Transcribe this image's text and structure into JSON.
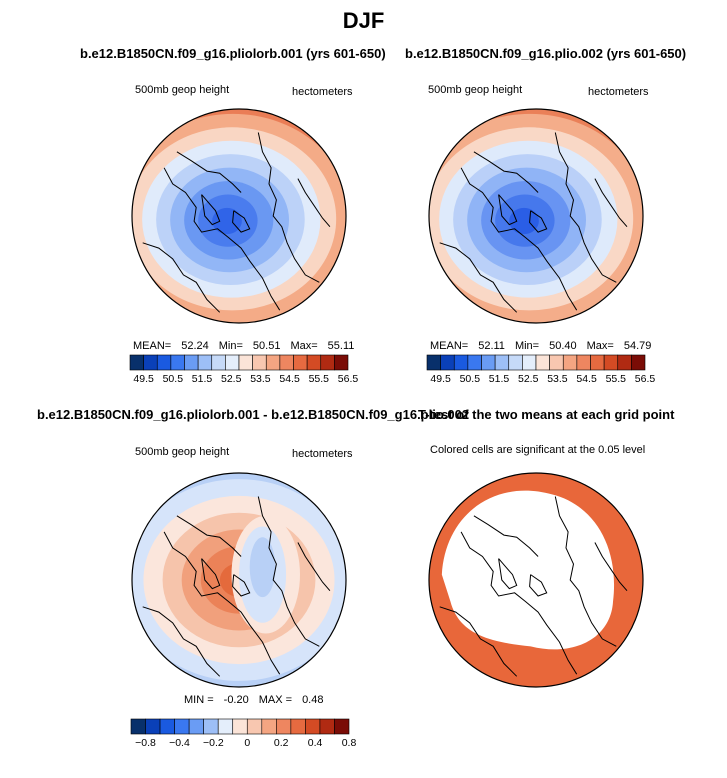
{
  "main_title": "DJF",
  "chart_data": [
    {
      "type": "map",
      "id": "map1",
      "title": "b.e12.B1850CN.f09_g16.pliolorb.001 (yrs 601-650)",
      "left_label": "500mb geop height",
      "right_label": "hectometers",
      "stats": {
        "mean_label": "MEAN=",
        "mean": "52.24",
        "min_label": "Min=",
        "min": "50.51",
        "max_label": "Max=",
        "max": "55.11"
      },
      "colorbar": {
        "ticks": [
          "49.5",
          "50.5",
          "51.5",
          "52.5",
          "53.5",
          "54.5",
          "55.5",
          "56.5"
        ],
        "colors": [
          "#08306b",
          "#0a40b8",
          "#1a5ae0",
          "#3a78f0",
          "#6a9cf4",
          "#9dbff7",
          "#c6daf8",
          "#e4eefb",
          "#fbe4d8",
          "#f8c7b0",
          "#f4a582",
          "#ee8660",
          "#e66a40",
          "#d44b24",
          "#b02a12",
          "#7a0c06"
        ]
      },
      "field_colors": [
        "#3064e8",
        "#4a7cee",
        "#6a98f2",
        "#92b6f6",
        "#bcd2f8",
        "#e0ebfb",
        "#f9d6c3",
        "#f4ab87",
        "#ea7d56"
      ]
    },
    {
      "type": "map",
      "id": "map2",
      "title": "b.e12.B1850CN.f09_g16.plio.002 (yrs 601-650)",
      "left_label": "500mb geop height",
      "right_label": "hectometers",
      "stats": {
        "mean_label": "MEAN=",
        "mean": "52.11",
        "min_label": "Min=",
        "min": "50.40",
        "max_label": "Max=",
        "max": "54.79"
      },
      "colorbar": {
        "ticks": [
          "49.5",
          "50.5",
          "51.5",
          "52.5",
          "53.5",
          "54.5",
          "55.5",
          "56.5"
        ],
        "colors": [
          "#08306b",
          "#0a40b8",
          "#1a5ae0",
          "#3a78f0",
          "#6a9cf4",
          "#9dbff7",
          "#c6daf8",
          "#e4eefb",
          "#fbe4d8",
          "#f8c7b0",
          "#f4a582",
          "#ee8660",
          "#e66a40",
          "#d44b24",
          "#b02a12",
          "#7a0c06"
        ]
      },
      "field_colors": [
        "#2a5ee6",
        "#4678ec",
        "#6894f2",
        "#90b4f6",
        "#bad0f8",
        "#deeafb",
        "#f9d8c6",
        "#f4ad8a",
        "#ea8058"
      ]
    },
    {
      "type": "map",
      "id": "map3",
      "title": "b.e12.B1850CN.f09_g16.pliolorb.001 - b.e12.B1850CN.f09_g16.plio.002",
      "left_label": "500mb geop height",
      "right_label": "hectometers",
      "stats": {
        "min_label": "MIN =",
        "min": "-0.20",
        "max_label": "MAX =",
        "max": "0.48"
      },
      "colorbar": {
        "ticks": [
          "−0.8",
          "−0.4",
          "−0.2",
          "0",
          "0.2",
          "0.4",
          "0.8"
        ],
        "colors": [
          "#08306b",
          "#0a40b8",
          "#1a5ae0",
          "#3a78f0",
          "#6a9cf4",
          "#9dbff7",
          "#e4eefb",
          "#fbe4d8",
          "#f8c7b0",
          "#f4a582",
          "#ee8660",
          "#e66a40",
          "#d44b24",
          "#b02a12",
          "#7a0c06"
        ]
      },
      "field_colors": [
        "#b8d0f6",
        "#d6e4fa",
        "#fbe6dc",
        "#f6c4ab",
        "#f1a07c",
        "#eb8258",
        "#e46a3c"
      ]
    },
    {
      "type": "map",
      "id": "map4",
      "title": "T-test of the two means at each grid point",
      "left_label": "Colored cells are significant at the 0.05 level",
      "significance_color": "#e8673a"
    }
  ]
}
